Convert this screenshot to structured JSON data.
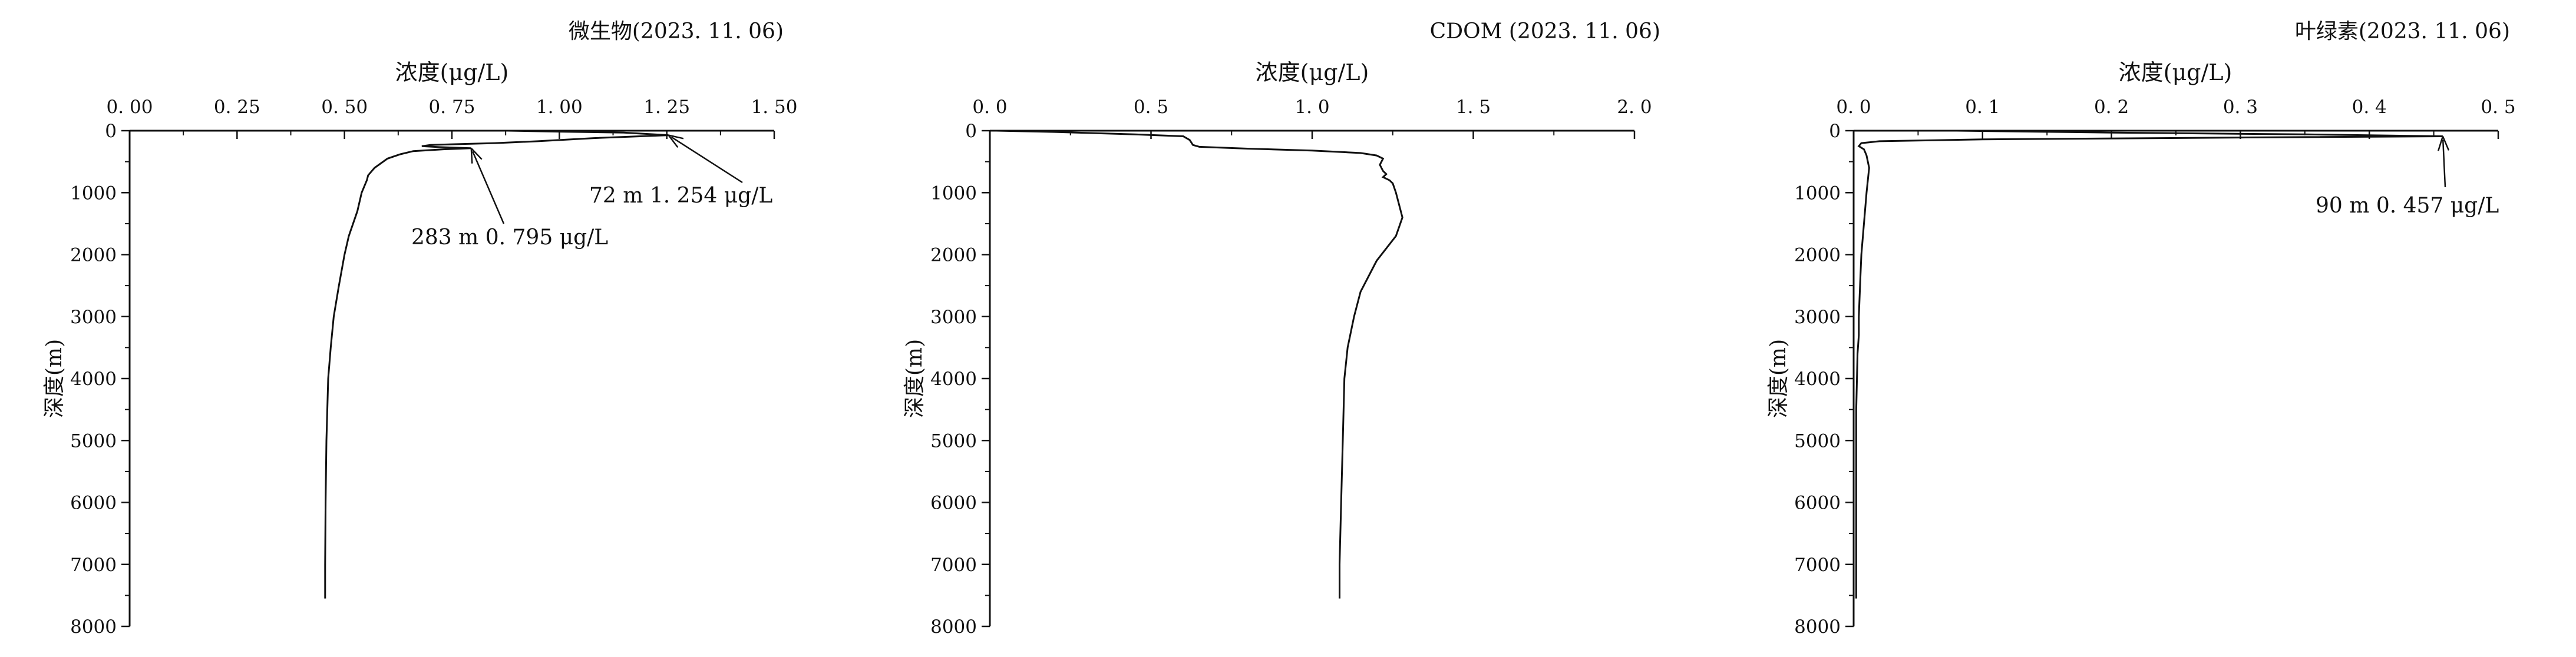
{
  "chart_data": [
    {
      "type": "line",
      "title": "微生物(2023. 11. 06)",
      "xlabel": "浓度(μg/L)",
      "ylabel": "深度(m)",
      "xlim": [
        0,
        1.5
      ],
      "ylim": [
        8000,
        0
      ],
      "x_axis_position": "top",
      "y_inverted": true,
      "grid": false,
      "x_ticks": [
        0,
        0.25,
        0.5,
        0.75,
        1.0,
        1.25,
        1.5
      ],
      "x_tick_labels": [
        "0. 00",
        "0. 25",
        "0. 50",
        "0. 75",
        "1. 00",
        "1. 25",
        "1. 50"
      ],
      "y_ticks": [
        0,
        1000,
        2000,
        3000,
        4000,
        5000,
        6000,
        7000,
        8000
      ],
      "y_tick_labels": [
        "0",
        "1000",
        "2000",
        "3000",
        "4000",
        "5000",
        "6000",
        "7000",
        "8000"
      ],
      "series": [
        {
          "points": [
            [
              0.88,
              0
            ],
            [
              1.0,
              15
            ],
            [
              1.15,
              30
            ],
            [
              1.254,
              72
            ],
            [
              1.08,
              120
            ],
            [
              0.95,
              170
            ],
            [
              0.85,
              200
            ],
            [
              0.7,
              230
            ],
            [
              0.68,
              250
            ],
            [
              0.72,
              265
            ],
            [
              0.795,
              283
            ],
            [
              0.73,
              300
            ],
            [
              0.66,
              330
            ],
            [
              0.63,
              380
            ],
            [
              0.6,
              450
            ],
            [
              0.57,
              600
            ],
            [
              0.555,
              720
            ],
            [
              0.552,
              800
            ],
            [
              0.54,
              1000
            ],
            [
              0.53,
              1300
            ],
            [
              0.51,
              1700
            ],
            [
              0.5,
              2000
            ],
            [
              0.487,
              2500
            ],
            [
              0.475,
              3000
            ],
            [
              0.468,
              3500
            ],
            [
              0.462,
              4000
            ],
            [
              0.458,
              5000
            ],
            [
              0.456,
              6000
            ],
            [
              0.455,
              7000
            ],
            [
              0.455,
              7550
            ]
          ]
        }
      ],
      "annotations": [
        {
          "text": "72 m  1. 254 μg/L",
          "x": 1.254,
          "y": 72
        },
        {
          "text": "283 m  0. 795 μg/L",
          "x": 0.795,
          "y": 283
        }
      ]
    },
    {
      "type": "line",
      "title": "CDOM (2023. 11. 06)",
      "xlabel": "浓度(μg/L)",
      "ylabel": "深度(m)",
      "xlim": [
        0,
        2.0
      ],
      "ylim": [
        8000,
        0
      ],
      "x_axis_position": "top",
      "y_inverted": true,
      "grid": false,
      "x_ticks": [
        0,
        0.5,
        1.0,
        1.5,
        2.0
      ],
      "x_tick_labels": [
        "0. 0",
        "0. 5",
        "1. 0",
        "1. 5",
        "2. 0"
      ],
      "y_ticks": [
        0,
        1000,
        2000,
        3000,
        4000,
        5000,
        6000,
        7000,
        8000
      ],
      "y_tick_labels": [
        "0",
        "1000",
        "2000",
        "3000",
        "4000",
        "5000",
        "6000",
        "7000",
        "8000"
      ],
      "series": [
        {
          "points": [
            [
              0.02,
              0
            ],
            [
              0.2,
              20
            ],
            [
              0.45,
              60
            ],
            [
              0.6,
              90
            ],
            [
              0.62,
              150
            ],
            [
              0.63,
              230
            ],
            [
              0.65,
              260
            ],
            [
              0.8,
              290
            ],
            [
              1.0,
              320
            ],
            [
              1.15,
              360
            ],
            [
              1.2,
              400
            ],
            [
              1.22,
              450
            ],
            [
              1.21,
              550
            ],
            [
              1.22,
              650
            ],
            [
              1.23,
              700
            ],
            [
              1.22,
              750
            ],
            [
              1.24,
              800
            ],
            [
              1.25,
              850
            ],
            [
              1.26,
              1000
            ],
            [
              1.27,
              1200
            ],
            [
              1.28,
              1400
            ],
            [
              1.26,
              1700
            ],
            [
              1.2,
              2100
            ],
            [
              1.15,
              2600
            ],
            [
              1.13,
              3000
            ],
            [
              1.11,
              3500
            ],
            [
              1.1,
              4000
            ],
            [
              1.095,
              5000
            ],
            [
              1.09,
              6000
            ],
            [
              1.085,
              7000
            ],
            [
              1.085,
              7550
            ]
          ]
        }
      ],
      "annotations": []
    },
    {
      "type": "line",
      "title": "叶绿素(2023. 11. 06)",
      "xlabel": "浓度(μg/L)",
      "ylabel": "深度(m)",
      "xlim": [
        0,
        0.5
      ],
      "ylim": [
        8000,
        0
      ],
      "x_axis_position": "top",
      "y_inverted": true,
      "grid": false,
      "x_ticks": [
        0,
        0.1,
        0.2,
        0.3,
        0.4,
        0.5
      ],
      "x_tick_labels": [
        "0. 0",
        "0. 1",
        "0. 2",
        "0. 3",
        "0. 4",
        "0. 5"
      ],
      "y_ticks": [
        0,
        1000,
        2000,
        3000,
        4000,
        5000,
        6000,
        7000,
        8000
      ],
      "y_tick_labels": [
        "0",
        "1000",
        "2000",
        "3000",
        "4000",
        "5000",
        "6000",
        "7000",
        "8000"
      ],
      "series": [
        {
          "points": [
            [
              0.08,
              0
            ],
            [
              0.2,
              30
            ],
            [
              0.35,
              60
            ],
            [
              0.457,
              90
            ],
            [
              0.3,
              110
            ],
            [
              0.1,
              140
            ],
            [
              0.02,
              170
            ],
            [
              0.006,
              200
            ],
            [
              0.004,
              250
            ],
            [
              0.008,
              300
            ],
            [
              0.01,
              400
            ],
            [
              0.012,
              600
            ],
            [
              0.011,
              800
            ],
            [
              0.01,
              1000
            ],
            [
              0.008,
              1500
            ],
            [
              0.006,
              2000
            ],
            [
              0.005,
              2500
            ],
            [
              0.004,
              3000
            ],
            [
              0.004,
              3300
            ],
            [
              0.003,
              3600
            ],
            [
              0.002,
              4500
            ],
            [
              0.002,
              6000
            ],
            [
              0.002,
              7550
            ]
          ]
        }
      ],
      "annotations": [
        {
          "text": "90 m  0. 457 μg/L",
          "x": 0.457,
          "y": 90
        }
      ]
    }
  ]
}
